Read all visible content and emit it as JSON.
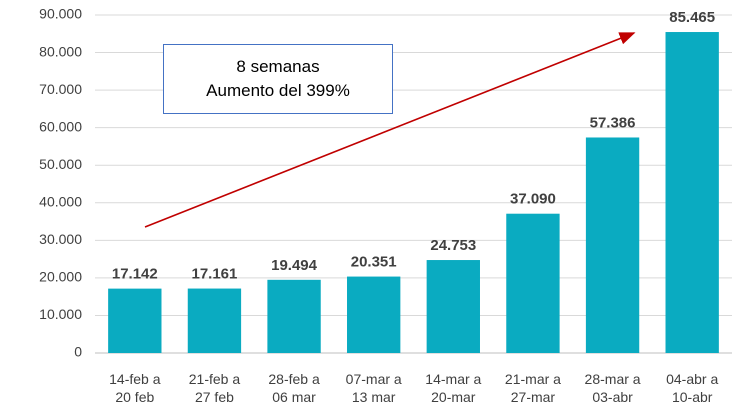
{
  "chart_data": {
    "type": "bar",
    "categories": [
      "14-feb a\n20 feb",
      "21-feb a\n27 feb",
      "28-feb a\n06 mar",
      "07-mar a\n13 mar",
      "14-mar a\n20-mar",
      "21-mar a\n27-mar",
      "28-mar a\n03-abr",
      "04-abr a\n10-abr"
    ],
    "values": [
      17142,
      17161,
      19494,
      20351,
      24753,
      37090,
      57386,
      85465
    ],
    "value_labels": [
      "17.142",
      "17.161",
      "19.494",
      "20.351",
      "24.753",
      "37.090",
      "57.386",
      "85.465"
    ],
    "color": "#0aabc1",
    "ylim": [
      0,
      90000
    ],
    "yticks": [
      0,
      {
        "value": 10000,
        "label": "10.000"
      },
      {
        "value": 20000,
        "label": "20.000"
      },
      {
        "value": 30000,
        "label": "30.000"
      },
      {
        "value": 40000,
        "label": "40.000"
      },
      {
        "value": 50000,
        "label": "50.000"
      },
      {
        "value": 60000,
        "label": "60.000"
      },
      {
        "value": 70000,
        "label": "70.000"
      },
      {
        "value": 80000,
        "label": "80.000"
      },
      {
        "value": 90000,
        "label": "90.000"
      }
    ],
    "grid": true,
    "annotation": "8 semanas\nAumento del 399%"
  }
}
